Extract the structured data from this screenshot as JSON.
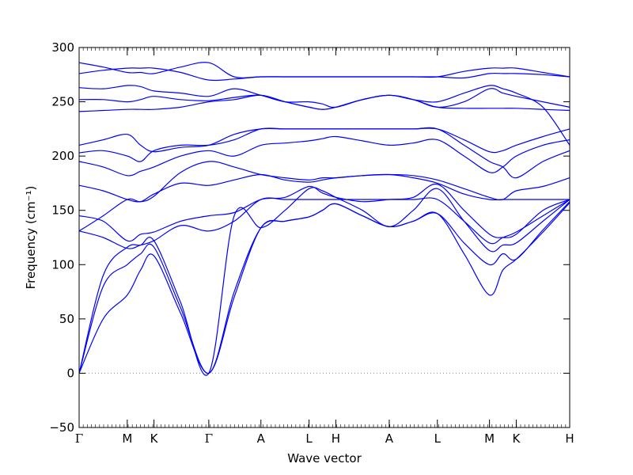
{
  "chart_data": {
    "type": "line",
    "xlabel": "Wave vector",
    "ylabel": "Frequency (cm⁻¹)",
    "ylim": [
      -50,
      300
    ],
    "y_ticks": [
      -50,
      0,
      50,
      100,
      150,
      200,
      250,
      300
    ],
    "y_tick_labels": [
      "−50",
      "0",
      "50",
      "100",
      "150",
      "200",
      "250",
      "300"
    ],
    "x_range": [
      0,
      3.67
    ],
    "x_ticks": [
      {
        "label": "Γ",
        "x": 0.0
      },
      {
        "label": "M",
        "x": 0.36
      },
      {
        "label": "K",
        "x": 0.56
      },
      {
        "label": "Γ",
        "x": 0.97
      },
      {
        "label": "A",
        "x": 1.36
      },
      {
        "label": "L",
        "x": 1.72
      },
      {
        "label": "H",
        "x": 1.92
      },
      {
        "label": "A",
        "x": 2.32
      },
      {
        "label": "L",
        "x": 2.68
      },
      {
        "label": "M",
        "x": 3.07
      },
      {
        "label": "K",
        "x": 3.27
      },
      {
        "label": "H",
        "x": 3.67
      }
    ],
    "zero_line": {
      "y": 0,
      "style": "dotted",
      "color": "#888888"
    },
    "grid": false,
    "legend": "none",
    "line_color": "#0000ff",
    "series": [
      {
        "x": [
          0,
          0.18,
          0.36,
          0.46,
          0.56,
          0.76,
          0.97,
          1.16,
          1.36,
          1.54,
          1.72,
          1.82,
          1.92,
          2.12,
          2.32,
          2.5,
          2.68,
          2.88,
          3.07,
          3.17,
          3.27,
          3.47,
          3.67
        ],
        "y": [
          0,
          50,
          72,
          95,
          108,
          55,
          0,
          70,
          134,
          140,
          144,
          150,
          156,
          145,
          135,
          140,
          147,
          110,
          72,
          95,
          105,
          130,
          157
        ]
      },
      {
        "x": [
          0,
          0.18,
          0.36,
          0.46,
          0.56,
          0.76,
          0.97,
          1.16,
          1.36,
          1.54,
          1.72,
          1.82,
          1.92,
          2.12,
          2.32,
          2.5,
          2.68,
          2.88,
          3.07,
          3.17,
          3.27,
          3.47,
          3.67
        ],
        "y": [
          0,
          80,
          100,
          110,
          116,
          60,
          0,
          75,
          134,
          140,
          144,
          150,
          156,
          145,
          135,
          140,
          147,
          120,
          100,
          110,
          105,
          132,
          158
        ]
      },
      {
        "x": [
          0,
          0.18,
          0.36,
          0.46,
          0.56,
          0.76,
          0.97,
          1.16,
          1.36,
          1.54,
          1.72,
          1.82,
          1.92,
          2.12,
          2.32,
          2.5,
          2.68,
          2.88,
          3.07,
          3.17,
          3.27,
          3.47,
          3.67
        ],
        "y": [
          0,
          90,
          116,
          118,
          122,
          65,
          0,
          145,
          134,
          150,
          170,
          168,
          162,
          150,
          135,
          150,
          170,
          140,
          113,
          118,
          120,
          140,
          160
        ]
      },
      {
        "x": [
          0,
          0.18,
          0.36,
          0.46,
          0.56,
          0.76,
          0.97,
          1.16,
          1.36,
          1.54,
          1.72,
          1.82,
          1.92,
          2.12,
          2.32,
          2.5,
          2.68,
          2.88,
          3.07,
          3.17,
          3.27,
          3.47,
          3.67
        ],
        "y": [
          131,
          125,
          115,
          118,
          122,
          136,
          131,
          140,
          160,
          160,
          160,
          160,
          160,
          160,
          160,
          160,
          160,
          140,
          120,
          125,
          130,
          145,
          160
        ]
      },
      {
        "x": [
          0,
          0.18,
          0.36,
          0.46,
          0.56,
          0.76,
          0.97,
          1.16,
          1.36,
          1.54,
          1.72,
          1.82,
          1.92,
          2.12,
          2.32,
          2.5,
          2.68,
          2.88,
          3.07,
          3.17,
          3.27,
          3.47,
          3.67
        ],
        "y": [
          145,
          140,
          122,
          128,
          130,
          140,
          145,
          148,
          160,
          162,
          172,
          166,
          162,
          158,
          160,
          162,
          174,
          150,
          128,
          125,
          128,
          150,
          160
        ]
      },
      {
        "x": [
          0,
          0.18,
          0.36,
          0.46,
          0.56,
          0.76,
          0.97,
          1.16,
          1.36,
          1.54,
          1.72,
          1.82,
          1.92,
          2.12,
          2.32,
          2.5,
          2.68,
          2.88,
          3.07,
          3.17,
          3.27,
          3.47,
          3.67
        ],
        "y": [
          131,
          145,
          160,
          158,
          165,
          175,
          173,
          178,
          183,
          178,
          176,
          178,
          180,
          182,
          183,
          180,
          175,
          165,
          160,
          160,
          160,
          160,
          160
        ]
      },
      {
        "x": [
          0,
          0.18,
          0.36,
          0.46,
          0.56,
          0.76,
          0.97,
          1.16,
          1.36,
          1.54,
          1.72,
          1.82,
          1.92,
          2.12,
          2.32,
          2.5,
          2.68,
          2.88,
          3.07,
          3.17,
          3.27,
          3.47,
          3.67
        ],
        "y": [
          173,
          168,
          160,
          158,
          163,
          185,
          195,
          190,
          183,
          180,
          178,
          180,
          180,
          182,
          183,
          182,
          178,
          170,
          162,
          160,
          168,
          172,
          180
        ]
      },
      {
        "x": [
          0,
          0.18,
          0.36,
          0.46,
          0.56,
          0.76,
          0.97,
          1.16,
          1.36,
          1.54,
          1.72,
          1.82,
          1.92,
          2.12,
          2.32,
          2.5,
          2.68,
          2.88,
          3.07,
          3.17,
          3.27,
          3.47,
          3.67
        ],
        "y": [
          195,
          190,
          182,
          186,
          190,
          200,
          205,
          200,
          210,
          212,
          214,
          216,
          218,
          214,
          210,
          212,
          215,
          200,
          185,
          190,
          200,
          210,
          215
        ]
      },
      {
        "x": [
          0,
          0.18,
          0.36,
          0.46,
          0.56,
          0.76,
          0.97,
          1.16,
          1.36,
          1.54,
          1.72,
          1.82,
          1.92,
          2.12,
          2.32,
          2.5,
          2.68,
          2.88,
          3.07,
          3.17,
          3.27,
          3.47,
          3.67
        ],
        "y": [
          203,
          205,
          200,
          195,
          205,
          210,
          210,
          215,
          225,
          225,
          225,
          225,
          225,
          225,
          225,
          225,
          225,
          210,
          195,
          190,
          180,
          195,
          205
        ]
      },
      {
        "x": [
          0,
          0.18,
          0.36,
          0.46,
          0.56,
          0.76,
          0.97,
          1.16,
          1.36,
          1.54,
          1.72,
          1.82,
          1.92,
          2.12,
          2.32,
          2.5,
          2.68,
          2.88,
          3.07,
          3.17,
          3.27,
          3.47,
          3.67
        ],
        "y": [
          210,
          215,
          220,
          210,
          204,
          208,
          210,
          220,
          225,
          225,
          225,
          225,
          225,
          225,
          225,
          225,
          225,
          215,
          204,
          205,
          210,
          218,
          225
        ]
      },
      {
        "x": [
          0,
          0.18,
          0.36,
          0.46,
          0.56,
          0.76,
          0.97,
          1.16,
          1.36,
          1.54,
          1.72,
          1.82,
          1.92,
          2.12,
          2.32,
          2.5,
          2.68,
          2.88,
          3.07,
          3.17,
          3.27,
          3.47,
          3.67
        ],
        "y": [
          241,
          242,
          243,
          243,
          243,
          245,
          250,
          252,
          256,
          250,
          245,
          243,
          245,
          252,
          256,
          252,
          245,
          244,
          244,
          244,
          244,
          243,
          242
        ]
      },
      {
        "x": [
          0,
          0.18,
          0.36,
          0.46,
          0.56,
          0.76,
          0.97,
          1.16,
          1.36,
          1.54,
          1.72,
          1.82,
          1.92,
          2.12,
          2.32,
          2.5,
          2.68,
          2.88,
          3.07,
          3.17,
          3.27,
          3.47,
          3.67
        ],
        "y": [
          252,
          252,
          250,
          252,
          255,
          252,
          251,
          254,
          256,
          250,
          245,
          243,
          245,
          252,
          256,
          252,
          245,
          250,
          262,
          258,
          255,
          250,
          245
        ]
      },
      {
        "x": [
          0,
          0.18,
          0.36,
          0.46,
          0.56,
          0.76,
          0.97,
          1.16,
          1.36,
          1.54,
          1.72,
          1.82,
          1.92,
          2.12,
          2.32,
          2.5,
          2.68,
          2.88,
          3.07,
          3.17,
          3.27,
          3.47,
          3.67
        ],
        "y": [
          263,
          262,
          265,
          264,
          260,
          258,
          255,
          262,
          256,
          250,
          250,
          248,
          245,
          252,
          256,
          252,
          250,
          258,
          265,
          262,
          258,
          245,
          210
        ]
      },
      {
        "x": [
          0,
          0.18,
          0.36,
          0.46,
          0.56,
          0.76,
          0.97,
          1.16,
          1.36,
          1.54,
          1.72,
          1.82,
          1.92,
          2.12,
          2.32,
          2.5,
          2.68,
          2.88,
          3.07,
          3.17,
          3.27,
          3.47,
          3.67
        ],
        "y": [
          276,
          279,
          281,
          281,
          281,
          277,
          270,
          271,
          273,
          273,
          273,
          273,
          273,
          273,
          273,
          273,
          273,
          278,
          281,
          281,
          281,
          277,
          273
        ]
      },
      {
        "x": [
          0,
          0.18,
          0.36,
          0.46,
          0.56,
          0.76,
          0.97,
          1.16,
          1.36,
          1.54,
          1.72,
          1.82,
          1.92,
          2.12,
          2.32,
          2.5,
          2.68,
          2.88,
          3.07,
          3.17,
          3.27,
          3.47,
          3.67
        ],
        "y": [
          286,
          282,
          277,
          277,
          276,
          282,
          286,
          273,
          273,
          273,
          273,
          273,
          273,
          273,
          273,
          273,
          273,
          272,
          276,
          276,
          276,
          275,
          273
        ]
      }
    ]
  }
}
